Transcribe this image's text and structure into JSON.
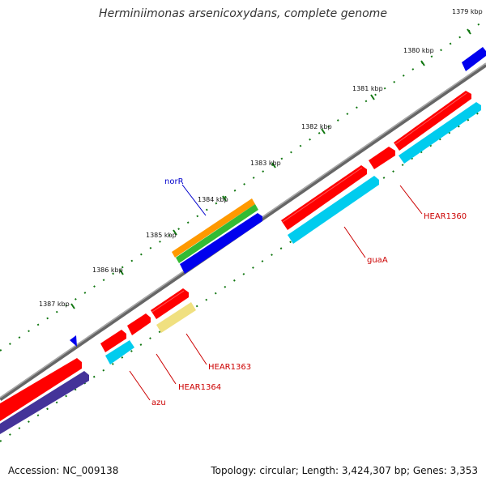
{
  "title": "Herminiimonas arsenicoxydans, complete genome",
  "footer": {
    "accession": "Accession: NC_009138",
    "topology": "Topology: circular; Length: 3,424,307 bp; Genes: 3,353"
  },
  "tick_labels": [
    "1379 kbp",
    "1380 kbp",
    "1381 kbp",
    "1382 kbp",
    "1383 kbp",
    "1384 kbp",
    "1385 kbp",
    "1386 kbp",
    "1387 kbp"
  ],
  "gene_labels": [
    {
      "text": "norR",
      "color": "#0000cc"
    },
    {
      "text": "HEAR1360",
      "color": "#cc0000"
    },
    {
      "text": "guaA",
      "color": "#cc0000"
    },
    {
      "text": "HEAR1363",
      "color": "#cc0000"
    },
    {
      "text": "HEAR1364",
      "color": "#cc0000"
    },
    {
      "text": "azu",
      "color": "#cc0000"
    }
  ],
  "colors": {
    "backbone": "#7f7f7f",
    "cds_red": "#ff0000",
    "cyan": "#00ccee",
    "blue": "#0000ee",
    "orange": "#ff9900",
    "green": "#33bb33",
    "yellow": "#f0e080",
    "navy": "#443399",
    "dots": "#117711"
  }
}
